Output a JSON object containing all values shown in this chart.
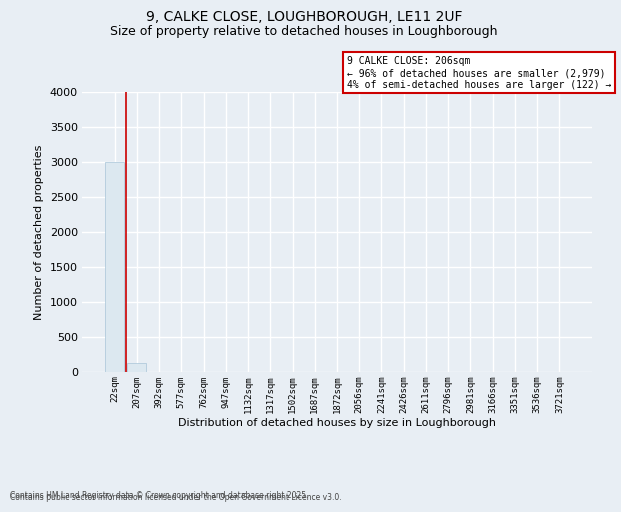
{
  "title1": "9, CALKE CLOSE, LOUGHBOROUGH, LE11 2UF",
  "title2": "Size of property relative to detached houses in Loughborough",
  "xlabel": "Distribution of detached houses by size in Loughborough",
  "ylabel": "Number of detached properties",
  "categories": [
    "22sqm",
    "207sqm",
    "392sqm",
    "577sqm",
    "762sqm",
    "947sqm",
    "1132sqm",
    "1317sqm",
    "1502sqm",
    "1687sqm",
    "1872sqm",
    "2056sqm",
    "2241sqm",
    "2426sqm",
    "2611sqm",
    "2796sqm",
    "2981sqm",
    "3166sqm",
    "3351sqm",
    "3536sqm",
    "3721sqm"
  ],
  "values": [
    3000,
    122,
    0,
    0,
    0,
    0,
    0,
    0,
    0,
    0,
    0,
    0,
    0,
    0,
    0,
    0,
    0,
    0,
    0,
    0,
    0
  ],
  "bar_fill": "#dce8f0",
  "bar_edge": "#a8c4d8",
  "annotation_line1": "9 CALKE CLOSE: 206sqm",
  "annotation_line2": "← 96% of detached houses are smaller (2,979)",
  "annotation_line3": "4% of semi-detached houses are larger (122) →",
  "annotation_bg": "#ffffff",
  "annotation_border": "#cc0000",
  "vline_color": "#cc0000",
  "vline_x": 0.5,
  "ylim_min": 0,
  "ylim_max": 4000,
  "yticks": [
    0,
    500,
    1000,
    1500,
    2000,
    2500,
    3000,
    3500,
    4000
  ],
  "bg_color": "#e8eef4",
  "grid_color": "#ffffff",
  "footer1": "Contains HM Land Registry data © Crown copyright and database right 2025.",
  "footer2": "Contains public sector information licensed under the Open Government Licence v3.0."
}
